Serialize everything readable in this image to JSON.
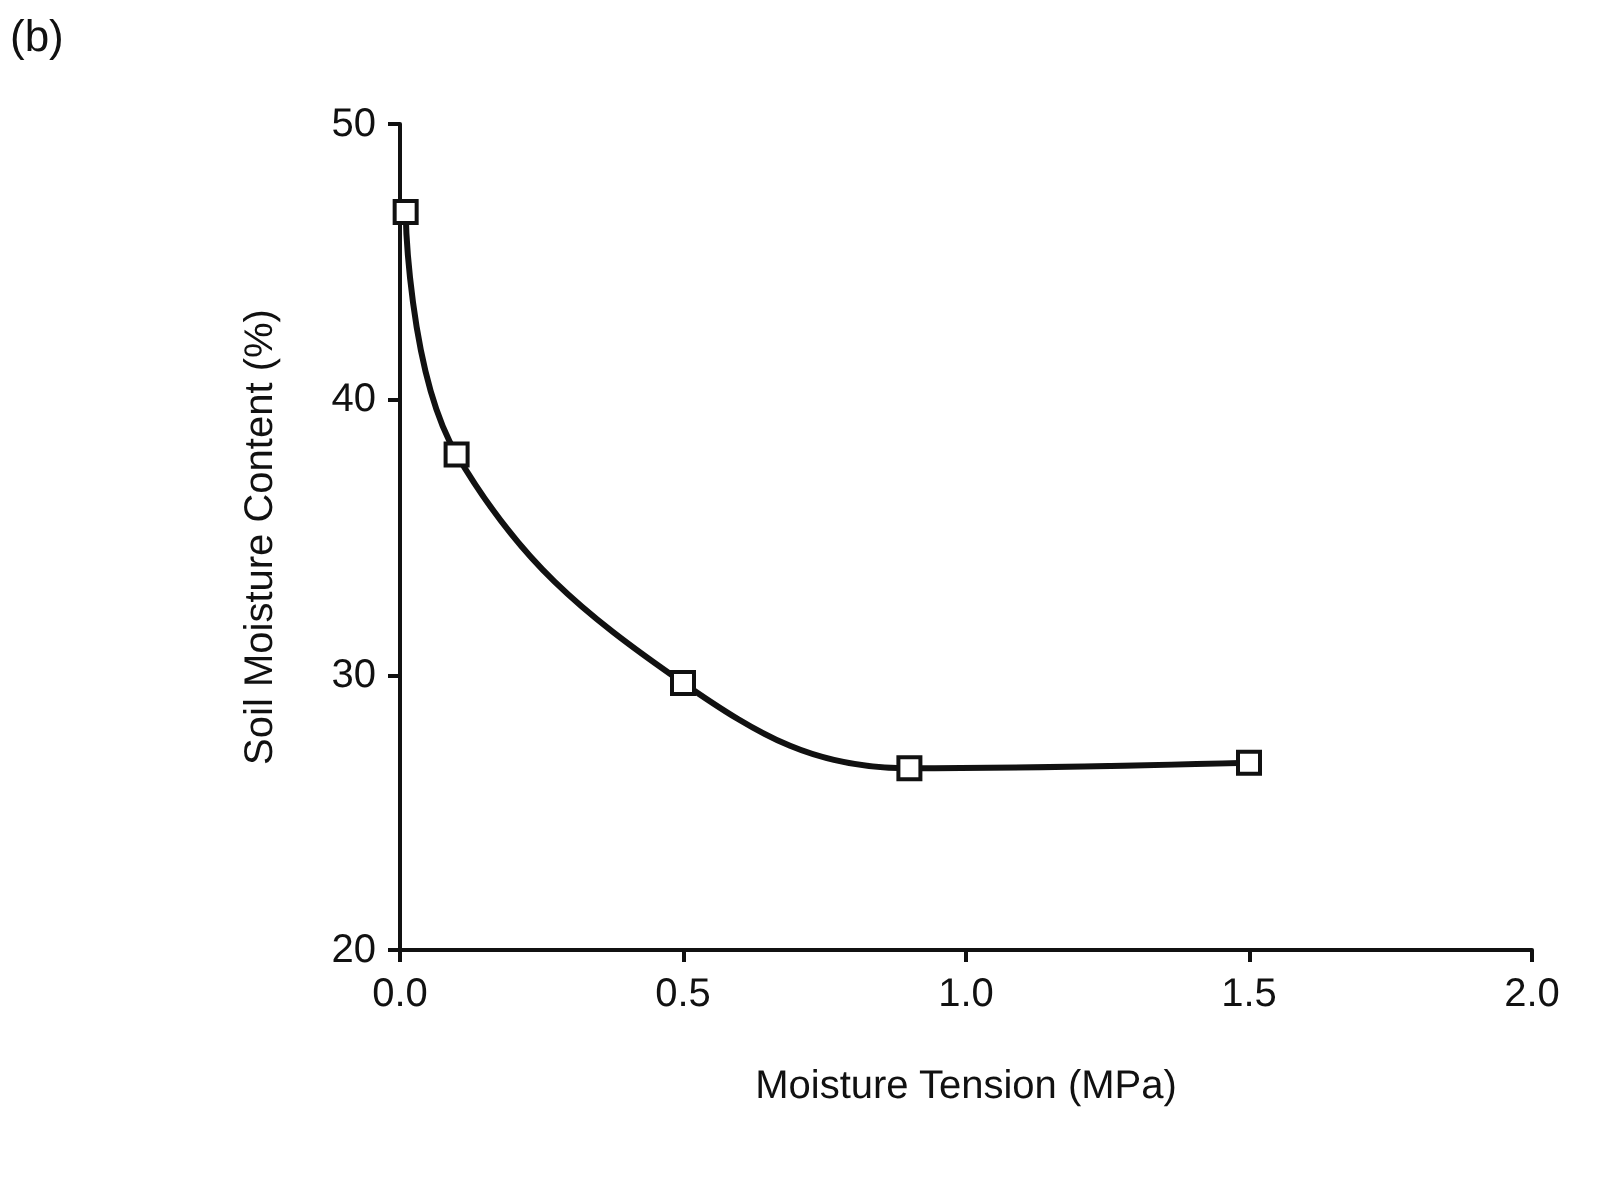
{
  "chart_data": {
    "type": "line",
    "title": "(b)",
    "xlabel": "Moisture Tension (MPa)",
    "ylabel": "Soil Moisture Content (%)",
    "x": [
      0.01,
      0.1,
      0.5,
      0.9,
      1.5
    ],
    "series": [
      {
        "color": "#111111",
        "values": [
          46.8,
          38,
          29.7,
          26.6,
          26.8
        ]
      }
    ],
    "xlim": [
      0,
      2
    ],
    "xticks": [
      {
        "value": 0,
        "label": "0.0"
      },
      {
        "value": 0.5,
        "label": "0.5"
      },
      {
        "value": 1,
        "label": "1.0"
      },
      {
        "value": 1.5,
        "label": "1.5"
      },
      {
        "value": 2,
        "label": "2.0"
      }
    ],
    "ylim": [
      20,
      50
    ],
    "yticks": [
      20,
      30,
      40,
      50
    ],
    "grid": false,
    "marker": "square",
    "line_style": "solid"
  }
}
